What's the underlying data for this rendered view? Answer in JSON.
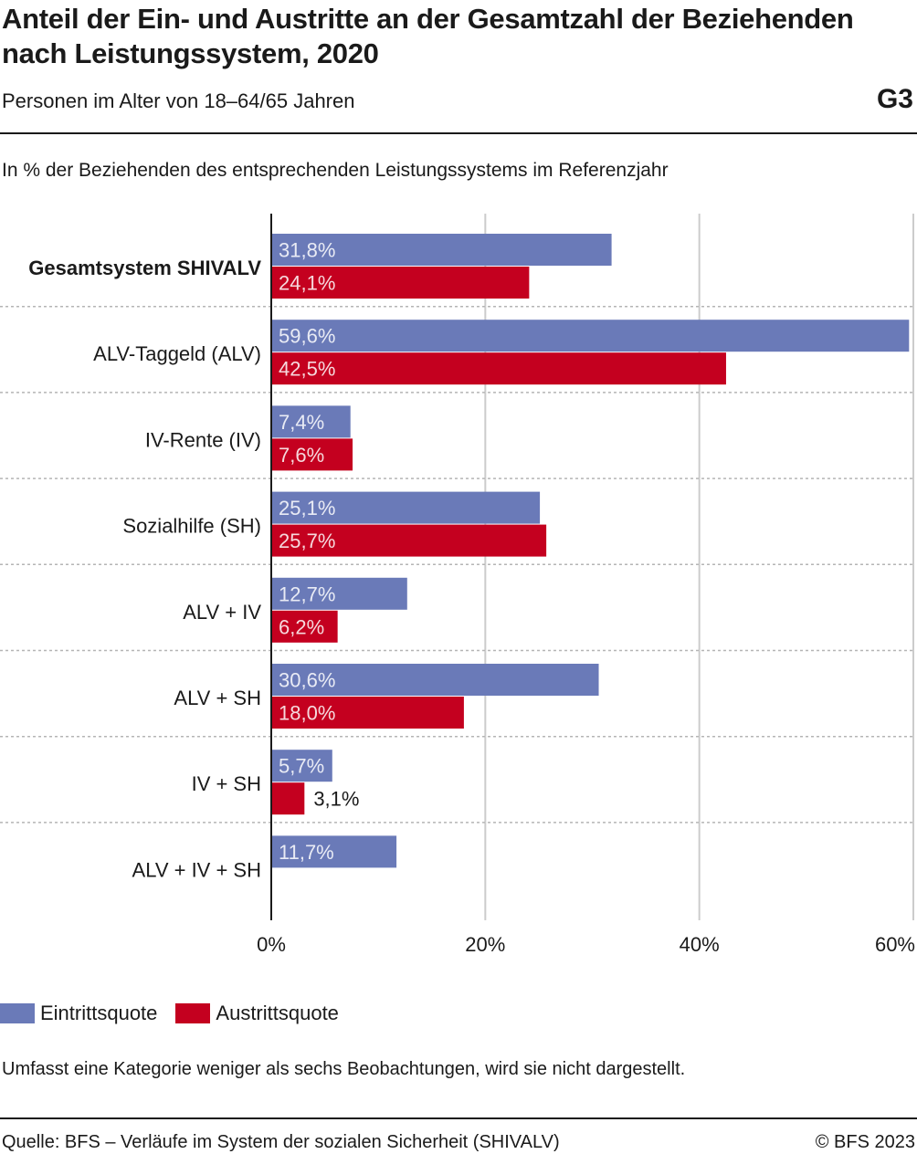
{
  "header": {
    "title": "Anteil der Ein- und Austritte an der Gesamtzahl der Beziehenden nach Leistungssystem, 2020",
    "subtitle": "Personen im Alter von 18–64/65 Jahren",
    "chart_id": "G3"
  },
  "unit_label": "In % der Beziehenden des entsprechenden Leistungssystems im Referenzjahr",
  "colors": {
    "eintritt": "#6a7ab8",
    "austritt": "#c4001f",
    "gridline": "#cccccc",
    "separator": "#b5b5b5",
    "axis": "#1a1a1a"
  },
  "chart_data": {
    "type": "bar",
    "orientation": "horizontal",
    "categories": [
      "Gesamtsystem SHIVALV",
      "ALV-Taggeld (ALV)",
      "IV-Rente (IV)",
      "Sozialhilfe (SH)",
      "ALV + IV",
      "ALV + SH",
      "IV + SH",
      "ALV + IV + SH"
    ],
    "bold_categories": [
      "Gesamtsystem SHIVALV"
    ],
    "series": [
      {
        "name": "Eintrittsquote",
        "color": "#6a7ab8",
        "values": [
          31.8,
          59.6,
          7.4,
          25.1,
          12.7,
          30.6,
          5.7,
          11.7
        ],
        "labels": [
          "31,8%",
          "59,6%",
          "7,4%",
          "25,1%",
          "12,7%",
          "30,6%",
          "5,7%",
          "11,7%"
        ]
      },
      {
        "name": "Austrittsquote",
        "color": "#c4001f",
        "values": [
          24.1,
          42.5,
          7.6,
          25.7,
          6.2,
          18.0,
          3.1,
          null
        ],
        "labels": [
          "24,1%",
          "42,5%",
          "7,6%",
          "25,7%",
          "6,2%",
          "18,0%",
          "3,1%",
          null
        ]
      }
    ],
    "xlim": [
      0,
      60
    ],
    "xticks": [
      0,
      20,
      40,
      60
    ],
    "xtick_labels": [
      "0%",
      "20%",
      "40%",
      "60%"
    ],
    "grid": true,
    "legend_position": "bottom-left"
  },
  "legend": {
    "items": [
      {
        "label": "Eintrittsquote",
        "color": "#6a7ab8"
      },
      {
        "label": "Austrittsquote",
        "color": "#c4001f"
      }
    ]
  },
  "note": "Umfasst eine Kategorie weniger als sechs Beobachtungen, wird sie nicht dargestellt.",
  "footer": {
    "source": "Quelle: BFS – Verläufe im System der sozialen Sicherheit (SHIVALV)",
    "copyright": "© BFS 2023"
  }
}
